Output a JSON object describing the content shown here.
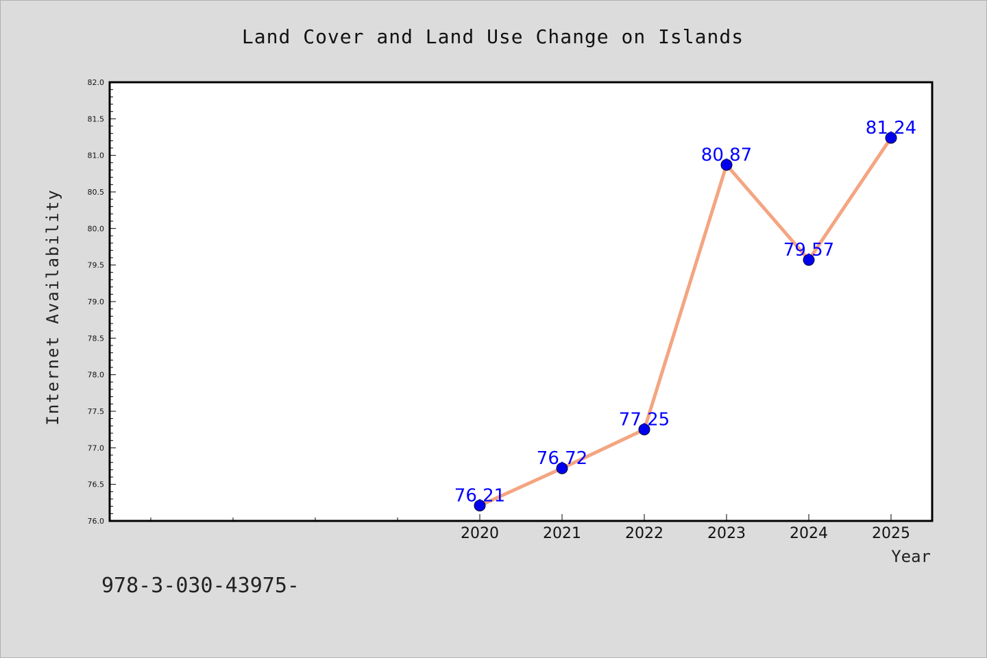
{
  "chart_data": {
    "type": "line",
    "title": "Land Cover and Land Use Change on Islands",
    "xlabel": "Year",
    "ylabel": "Internet Availability",
    "x": [
      2020,
      2021,
      2022,
      2023,
      2024,
      2025
    ],
    "x_tick_labels": [
      "2020",
      "2021",
      "2022",
      "2023",
      "2024",
      "2025"
    ],
    "series": [
      {
        "values": [
          76.21,
          76.72,
          77.25,
          80.87,
          79.57,
          81.24
        ]
      }
    ],
    "data_labels": [
      "76.21",
      "76.72",
      "77.25",
      "80.87",
      "79.57",
      "81.24"
    ],
    "ylim": [
      76.0,
      82.0
    ],
    "y_ticks": [
      "76.0",
      "76.5",
      "77.0",
      "77.5",
      "78.0",
      "78.5",
      "79.0",
      "79.5",
      "80.0",
      "80.5",
      "81.0",
      "81.5",
      "82.0"
    ],
    "x_range": [
      2015.5,
      2025.5
    ],
    "grid": false,
    "colors": {
      "line": "#f4a582",
      "marker": "#0000ee",
      "data_label": "#0000ff",
      "background": "#dcdcdc",
      "plot_background": "#ffffff"
    }
  },
  "footer_text": "978-3-030-43975-"
}
